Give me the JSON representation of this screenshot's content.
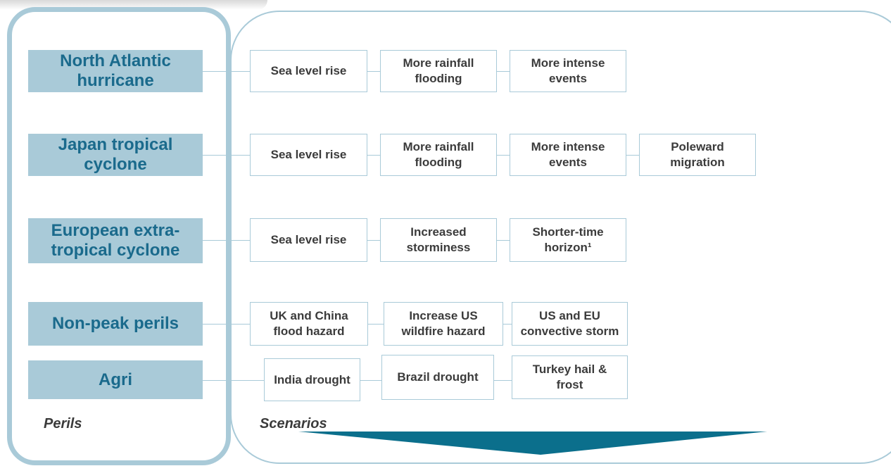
{
  "perils": [
    {
      "label": "North Atlantic\nhurricane",
      "scenarios": [
        "Sea level rise",
        "More rainfall\nflooding",
        "More intense\nevents"
      ]
    },
    {
      "label": "Japan tropical\ncyclone",
      "scenarios": [
        "Sea level rise",
        "More rainfall\nflooding",
        "More intense\nevents",
        "Poleward\nmigration"
      ]
    },
    {
      "label": "European extra-\ntropical cyclone",
      "scenarios": [
        "Sea level rise",
        "Increased\nstorminess",
        "Shorter-time\nhorizon¹"
      ]
    },
    {
      "label": "Non-peak perils",
      "scenarios": [
        "UK and China\nflood hazard",
        "Increase US\nwildfire hazard",
        "US and  EU\nconvective storm"
      ]
    },
    {
      "label": "Agri",
      "scenarios": [
        "India drought",
        "Brazil drought",
        "Turkey hail &\nfrost"
      ]
    }
  ],
  "labels": {
    "perils": "Perils",
    "scenarios": "Scenarios"
  },
  "colors": {
    "peril_fill": "#a9cad8",
    "peril_text": "#1a6a8c",
    "arrow": "#0b6f8c",
    "border": "#a9cad8"
  }
}
